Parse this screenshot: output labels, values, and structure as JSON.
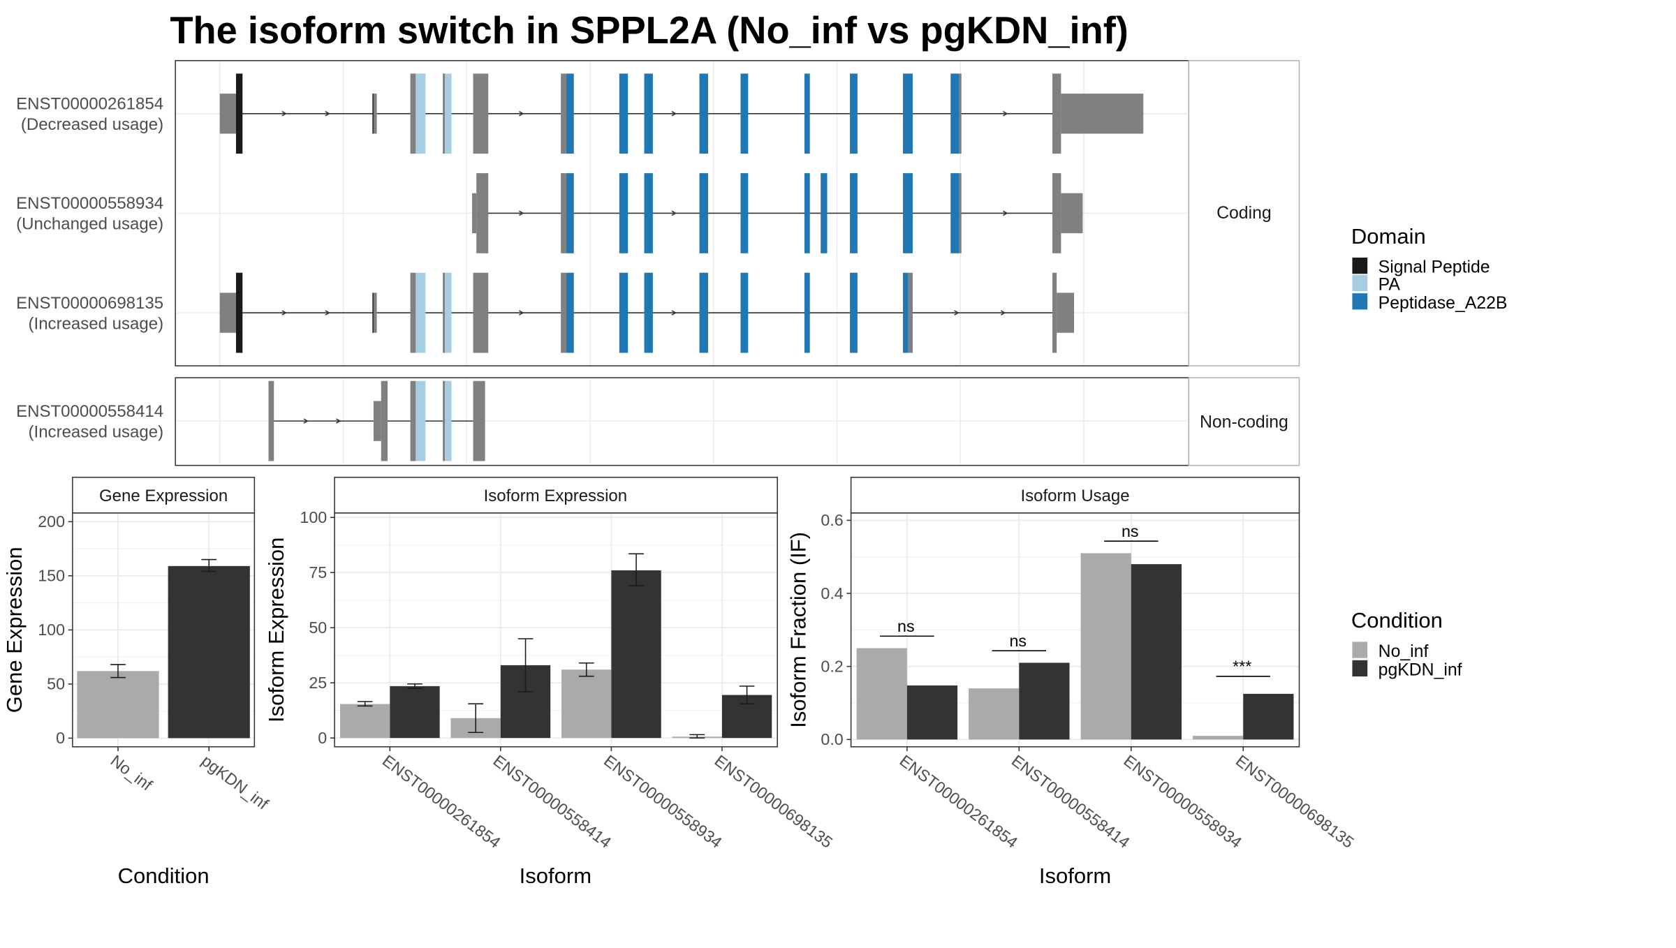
{
  "title": "The isoform switch in SPPL2A (No_inf vs pgKDN_inf)",
  "colors": {
    "signal_peptide": "#1a1a1a",
    "pa": "#a6cee3",
    "peptidase": "#1f78b4",
    "utr": "#808080",
    "no_inf": "#aaaaaa",
    "pgkdn_inf": "#333333",
    "grid": "#ebebeb",
    "strip_border": "#b3b3b3",
    "panel_border": "#333333"
  },
  "structure": {
    "facets": [
      "Coding",
      "Non-coding"
    ],
    "transcripts": [
      {
        "id": "ENST00000261854",
        "usage": "(Decreased usage)",
        "facet": "Coding",
        "features": [
          [
            "u",
            203,
            218
          ],
          [
            "s",
            218,
            224
          ],
          [
            "u",
            345,
            348
          ],
          [
            "s",
            344,
            345
          ],
          [
            "u",
            379,
            384
          ],
          [
            "p",
            384,
            393
          ],
          [
            "u",
            409,
            411
          ],
          [
            "p",
            411,
            417
          ],
          [
            "u",
            437,
            451
          ],
          [
            "u",
            518,
            523
          ],
          [
            "d",
            523,
            530
          ],
          [
            "d",
            572,
            580
          ],
          [
            "d",
            595,
            603
          ],
          [
            "d",
            646,
            654
          ],
          [
            "d",
            684,
            691
          ],
          [
            "d",
            743,
            748
          ],
          [
            "d",
            785,
            792
          ],
          [
            "d",
            834,
            843
          ],
          [
            "d",
            878,
            886
          ],
          [
            "u",
            886,
            888
          ],
          [
            "u",
            972,
            980
          ],
          [
            "u",
            980,
            1056
          ]
        ],
        "tall": [
          [
            218,
            224
          ],
          [
            344,
            348
          ],
          [
            379,
            384
          ],
          [
            384,
            393
          ],
          [
            409,
            411
          ],
          [
            411,
            417
          ],
          [
            437,
            451
          ],
          [
            518,
            523
          ],
          [
            523,
            530
          ],
          [
            572,
            580
          ],
          [
            595,
            603
          ],
          [
            646,
            654
          ],
          [
            684,
            691
          ],
          [
            743,
            748
          ],
          [
            785,
            792
          ],
          [
            834,
            843
          ],
          [
            878,
            886
          ],
          [
            886,
            888
          ],
          [
            972,
            980
          ]
        ],
        "arrows": [
          263,
          303,
          482,
          623,
          929
        ]
      },
      {
        "id": "ENST00000558934",
        "usage": "(Unchanged usage)",
        "facet": "Coding",
        "features": [
          [
            "u",
            436,
            440
          ],
          [
            "u",
            440,
            451
          ],
          [
            "u",
            518,
            523
          ],
          [
            "d",
            523,
            530
          ],
          [
            "d",
            572,
            580
          ],
          [
            "d",
            595,
            603
          ],
          [
            "d",
            646,
            654
          ],
          [
            "d",
            684,
            691
          ],
          [
            "d",
            743,
            748
          ],
          [
            "d",
            758,
            764
          ],
          [
            "d",
            785,
            792
          ],
          [
            "d",
            834,
            843
          ],
          [
            "d",
            878,
            886
          ],
          [
            "u",
            886,
            888
          ],
          [
            "u",
            972,
            980
          ],
          [
            "u",
            980,
            1000
          ]
        ],
        "tall": [
          [
            440,
            451
          ],
          [
            518,
            523
          ],
          [
            523,
            530
          ],
          [
            572,
            580
          ],
          [
            595,
            603
          ],
          [
            646,
            654
          ],
          [
            684,
            691
          ],
          [
            743,
            748
          ],
          [
            758,
            764
          ],
          [
            785,
            792
          ],
          [
            834,
            843
          ],
          [
            878,
            886
          ],
          [
            886,
            888
          ],
          [
            972,
            980
          ]
        ],
        "arrows": [
          482,
          623,
          929
        ]
      },
      {
        "id": "ENST00000698135",
        "usage": "(Increased usage)",
        "facet": "Coding",
        "features": [
          [
            "u",
            203,
            218
          ],
          [
            "s",
            218,
            224
          ],
          [
            "u",
            345,
            348
          ],
          [
            "s",
            344,
            345
          ],
          [
            "u",
            379,
            384
          ],
          [
            "p",
            384,
            393
          ],
          [
            "u",
            409,
            411
          ],
          [
            "p",
            411,
            417
          ],
          [
            "u",
            437,
            451
          ],
          [
            "u",
            518,
            523
          ],
          [
            "d",
            523,
            530
          ],
          [
            "d",
            572,
            580
          ],
          [
            "d",
            595,
            603
          ],
          [
            "d",
            646,
            654
          ],
          [
            "d",
            684,
            691
          ],
          [
            "d",
            743,
            748
          ],
          [
            "d",
            785,
            792
          ],
          [
            "d",
            834,
            839
          ],
          [
            "u",
            839,
            843
          ],
          [
            "u",
            972,
            976
          ],
          [
            "u",
            976,
            992
          ]
        ],
        "tall": [
          [
            218,
            224
          ],
          [
            344,
            348
          ],
          [
            379,
            384
          ],
          [
            384,
            393
          ],
          [
            409,
            411
          ],
          [
            411,
            417
          ],
          [
            437,
            451
          ],
          [
            518,
            523
          ],
          [
            523,
            530
          ],
          [
            572,
            580
          ],
          [
            595,
            603
          ],
          [
            646,
            654
          ],
          [
            684,
            691
          ],
          [
            743,
            748
          ],
          [
            785,
            792
          ],
          [
            834,
            839
          ],
          [
            839,
            843
          ],
          [
            972,
            976
          ]
        ],
        "arrows": [
          263,
          303,
          482,
          623,
          884,
          927
        ]
      },
      {
        "id": "ENST00000558414",
        "usage": "(Increased usage)",
        "facet": "Non-coding",
        "features": [
          [
            "u",
            248,
            253
          ],
          [
            "u",
            345,
            352
          ],
          [
            "u",
            352,
            358
          ],
          [
            "u",
            379,
            384
          ],
          [
            "p",
            384,
            393
          ],
          [
            "u",
            409,
            411
          ],
          [
            "p",
            411,
            417
          ],
          [
            "u",
            437,
            448
          ]
        ],
        "tall": [
          [
            248,
            253
          ],
          [
            352,
            358
          ],
          [
            379,
            384
          ],
          [
            384,
            393
          ],
          [
            409,
            411
          ],
          [
            411,
            417
          ],
          [
            437,
            448
          ]
        ],
        "arrows": [
          283,
          313
        ]
      }
    ]
  },
  "legends": {
    "domain": {
      "title": "Domain",
      "items": [
        "Signal Peptide",
        "PA",
        "Peptidase_A22B"
      ]
    },
    "condition": {
      "title": "Condition",
      "items": [
        "No_inf",
        "pgKDN_inf"
      ]
    }
  },
  "chart_data": [
    {
      "type": "bar",
      "title": "Gene Expression",
      "xlabel": "Condition",
      "ylabel": "Gene Expression",
      "categories": [
        "No_inf",
        "pgKDN_inf"
      ],
      "values": [
        62,
        159
      ],
      "errors": [
        [
          56,
          68
        ],
        [
          154,
          165
        ]
      ],
      "ylim": [
        -8,
        208
      ],
      "yticks": [
        0,
        50,
        100,
        150,
        200
      ],
      "grid": true
    },
    {
      "type": "bar",
      "title": "Isoform Expression",
      "xlabel": "Isoform",
      "ylabel": "Isoform Expression",
      "categories": [
        "ENST00000261854",
        "ENST00000558414",
        "ENST00000558934",
        "ENST00000698135"
      ],
      "series": [
        {
          "name": "No_inf",
          "values": [
            15.4,
            9.0,
            31.0,
            0.6
          ],
          "errors": [
            [
              14.5,
              16.5
            ],
            [
              2.5,
              15.5
            ],
            [
              28,
              34
            ],
            [
              0,
              1.5
            ]
          ]
        },
        {
          "name": "pgKDN_inf",
          "values": [
            23.5,
            33.0,
            76.0,
            19.5
          ],
          "errors": [
            [
              22.5,
              24.5
            ],
            [
              21,
              45
            ],
            [
              69,
              83.5
            ],
            [
              15.5,
              23.5
            ]
          ]
        }
      ],
      "ylim": [
        -4,
        102
      ],
      "yticks": [
        0,
        25,
        50,
        75,
        100
      ],
      "grid": true
    },
    {
      "type": "bar",
      "title": "Isoform Usage",
      "xlabel": "Isoform",
      "ylabel": "Isoform Fraction (IF)",
      "categories": [
        "ENST00000261854",
        "ENST00000558414",
        "ENST00000558934",
        "ENST00000698135"
      ],
      "series": [
        {
          "name": "No_inf",
          "values": [
            0.25,
            0.14,
            0.51,
            0.01
          ]
        },
        {
          "name": "pgKDN_inf",
          "values": [
            0.148,
            0.21,
            0.48,
            0.125
          ]
        }
      ],
      "significance": [
        "ns",
        "ns",
        "ns",
        "***"
      ],
      "ylim": [
        -0.02,
        0.62
      ],
      "yticks": [
        0.0,
        0.2,
        0.4,
        0.6
      ],
      "grid": true
    }
  ]
}
